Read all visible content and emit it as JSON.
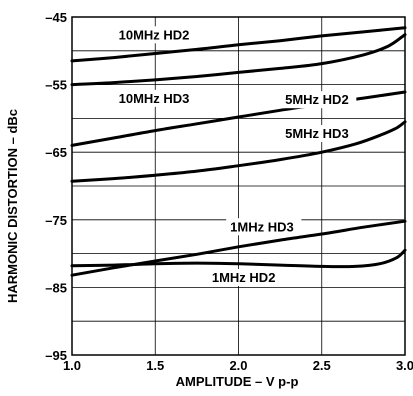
{
  "chart_data": {
    "type": "line",
    "xlabel": "AMPLITUDE – V p-p",
    "ylabel": "HARMONIC DISTORTION – dBc",
    "xlim": [
      1.0,
      3.0
    ],
    "ylim": [
      -95,
      -45
    ],
    "x_ticks": [
      "1.0",
      "1.5",
      "2.0",
      "2.5",
      "3.0"
    ],
    "y_ticks": [
      "–45",
      "–55",
      "–65",
      "–75",
      "–85",
      "–95"
    ],
    "grid": true,
    "legend": "none (labels placed next to curves)",
    "series": [
      {
        "name": "10MHz HD2",
        "x": [
          1.0,
          1.25,
          1.5,
          1.75,
          2.0,
          2.25,
          2.5,
          2.75,
          3.0
        ],
        "y": [
          -51.5,
          -51.0,
          -50.4,
          -49.8,
          -49.1,
          -48.5,
          -47.8,
          -47.2,
          -46.6
        ]
      },
      {
        "name": "10MHz HD3",
        "x": [
          1.0,
          1.25,
          1.5,
          1.75,
          2.0,
          2.25,
          2.5,
          2.75,
          2.9,
          3.0
        ],
        "y": [
          -55.0,
          -54.7,
          -54.3,
          -53.8,
          -53.2,
          -52.6,
          -51.9,
          -50.6,
          -49.3,
          -47.6
        ]
      },
      {
        "name": "5MHz HD2",
        "x": [
          1.0,
          1.25,
          1.5,
          1.75,
          2.0,
          2.25,
          2.5,
          2.75,
          3.0
        ],
        "y": [
          -64.0,
          -62.9,
          -61.8,
          -60.8,
          -59.8,
          -58.8,
          -57.9,
          -57.0,
          -56.1
        ]
      },
      {
        "name": "5MHz HD3",
        "x": [
          1.0,
          1.25,
          1.5,
          1.75,
          2.0,
          2.25,
          2.5,
          2.7,
          2.85,
          2.95,
          3.0
        ],
        "y": [
          -69.3,
          -68.9,
          -68.4,
          -67.8,
          -67.0,
          -66.1,
          -65.0,
          -63.8,
          -62.5,
          -61.4,
          -60.5
        ]
      },
      {
        "name": "1MHz HD3",
        "x": [
          1.0,
          1.25,
          1.5,
          1.75,
          2.0,
          2.25,
          2.5,
          2.75,
          3.0
        ],
        "y": [
          -83.2,
          -82.1,
          -81.1,
          -80.1,
          -79.0,
          -78.0,
          -77.1,
          -76.1,
          -75.2
        ]
      },
      {
        "name": "1MHz HD2",
        "x": [
          1.0,
          1.25,
          1.5,
          1.75,
          2.0,
          2.25,
          2.5,
          2.7,
          2.85,
          2.95,
          3.0
        ],
        "y": [
          -81.8,
          -81.7,
          -81.5,
          -81.4,
          -81.5,
          -81.7,
          -81.9,
          -81.9,
          -81.5,
          -80.6,
          -79.5
        ]
      }
    ],
    "series_labels": [
      {
        "text": "10MHz HD2",
        "x": 1.28,
        "y": -48.3
      },
      {
        "text": "10MHz HD3",
        "x": 1.28,
        "y": -57.7
      },
      {
        "text": "5MHz HD2",
        "x": 2.28,
        "y": -57.9
      },
      {
        "text": "5MHz HD3",
        "x": 2.28,
        "y": -62.9
      },
      {
        "text": "1MHz HD3",
        "x": 1.95,
        "y": -76.7
      },
      {
        "text": "1MHz HD2",
        "x": 1.84,
        "y": -84.2
      }
    ]
  }
}
